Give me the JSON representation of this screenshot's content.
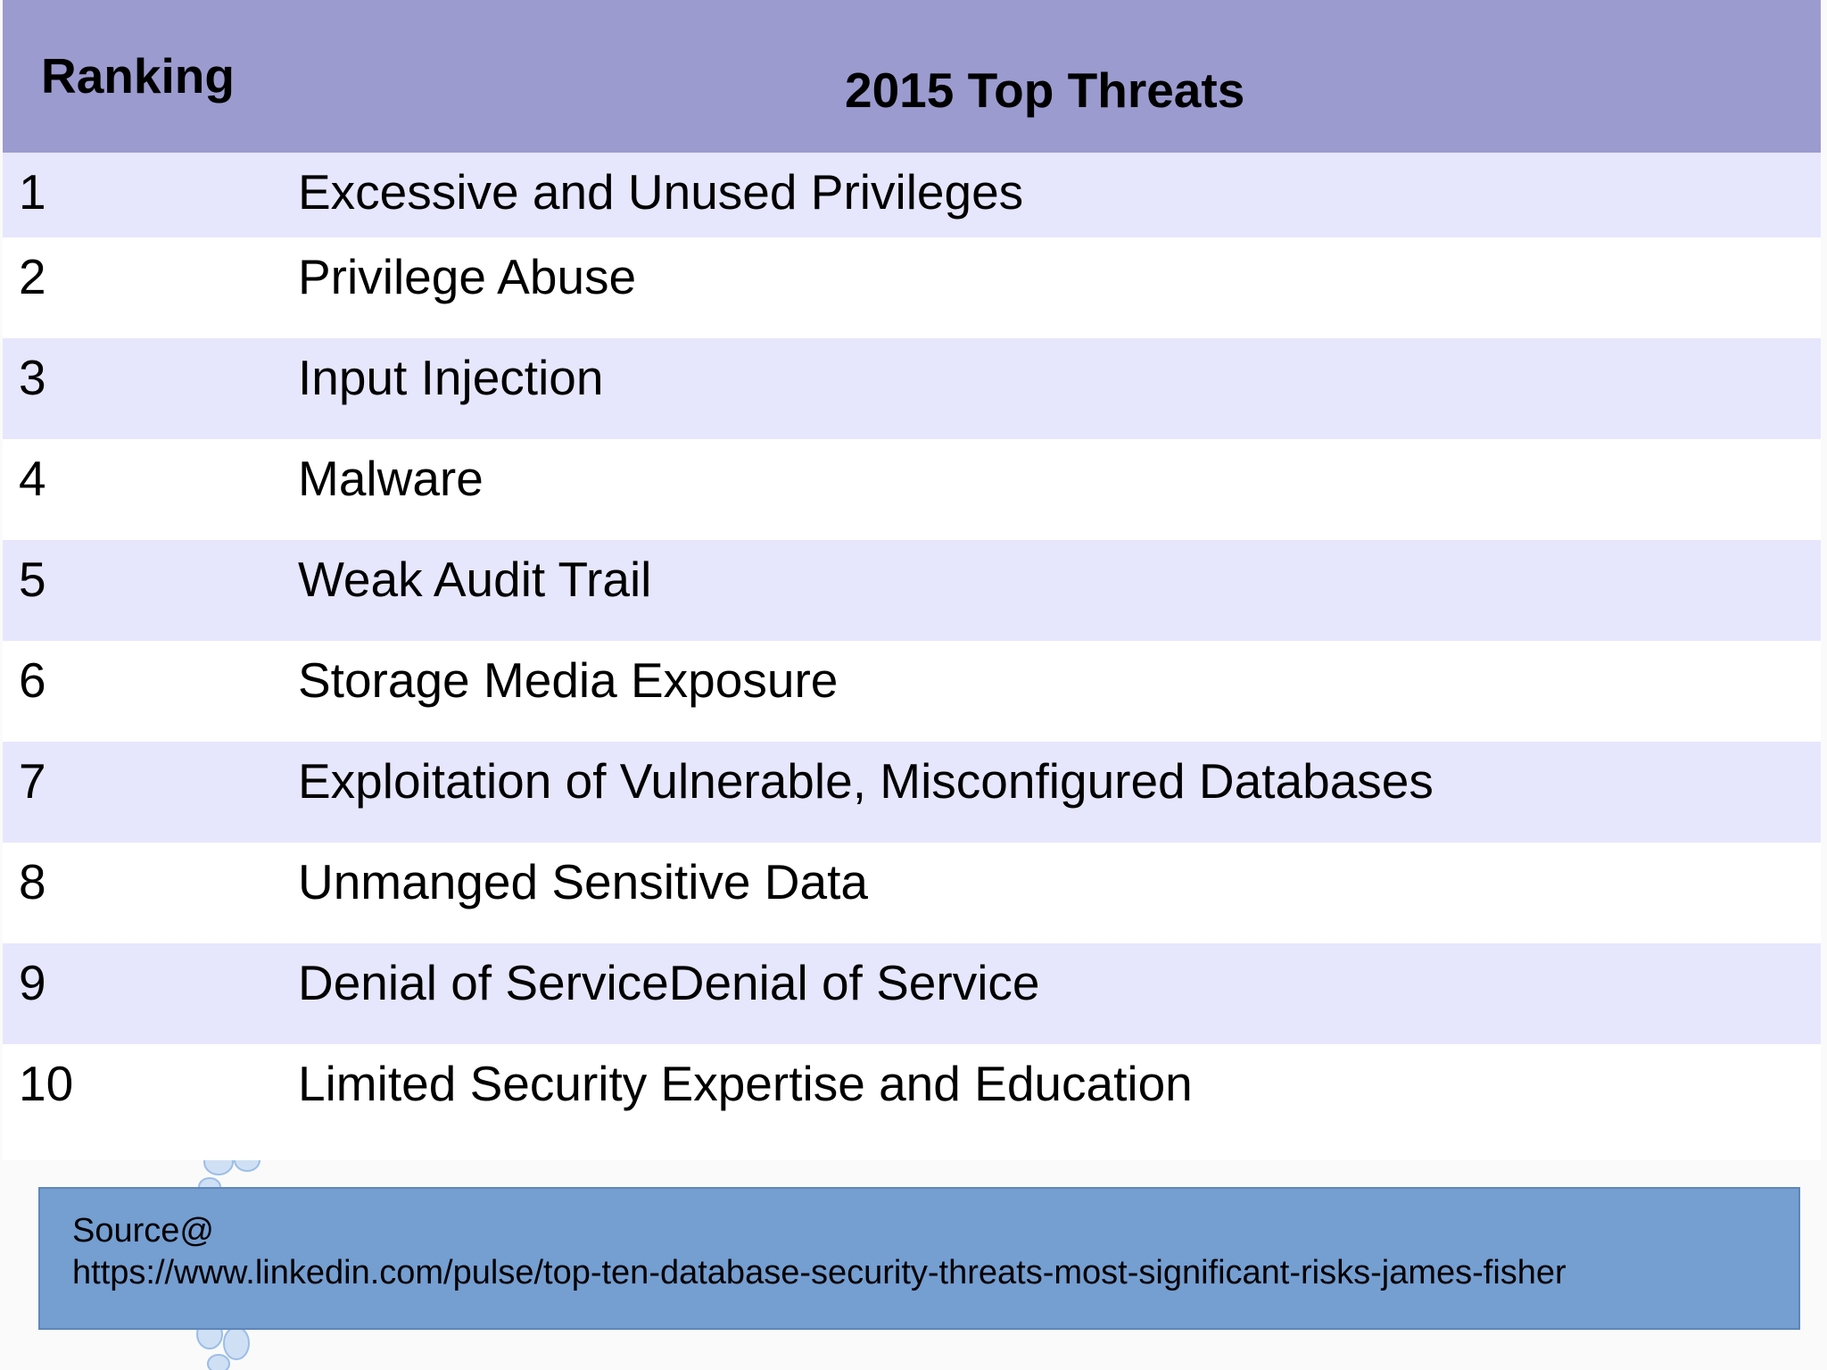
{
  "table": {
    "header": {
      "ranking": "Ranking",
      "threats": "2015 Top Threats"
    },
    "rows": [
      {
        "rank": "1",
        "threat": "Excessive and Unused Privileges"
      },
      {
        "rank": "2",
        "threat": "Privilege Abuse"
      },
      {
        "rank": "3",
        "threat": "Input Injection"
      },
      {
        "rank": "4",
        "threat": "Malware"
      },
      {
        "rank": "5",
        "threat": "Weak Audit Trail"
      },
      {
        "rank": "6",
        "threat": "Storage Media Exposure"
      },
      {
        "rank": "7",
        "threat": "Exploitation of Vulnerable, Misconfigured Databases"
      },
      {
        "rank": "8",
        "threat": "Unmanged Sensitive Data"
      },
      {
        "rank": "9",
        "threat": "Denial of ServiceDenial of Service"
      },
      {
        "rank": "10",
        "threat": "Limited Security Expertise and Education"
      }
    ]
  },
  "source": {
    "label": "Source@",
    "url": "https://www.linkedin.com/pulse/top-ten-database-security-threats-most-significant-risks-james-fisher"
  },
  "colors": {
    "header_bg": "#9b9bcf",
    "row_band": "#e6e6fd",
    "source_bg": "#759ed1"
  }
}
